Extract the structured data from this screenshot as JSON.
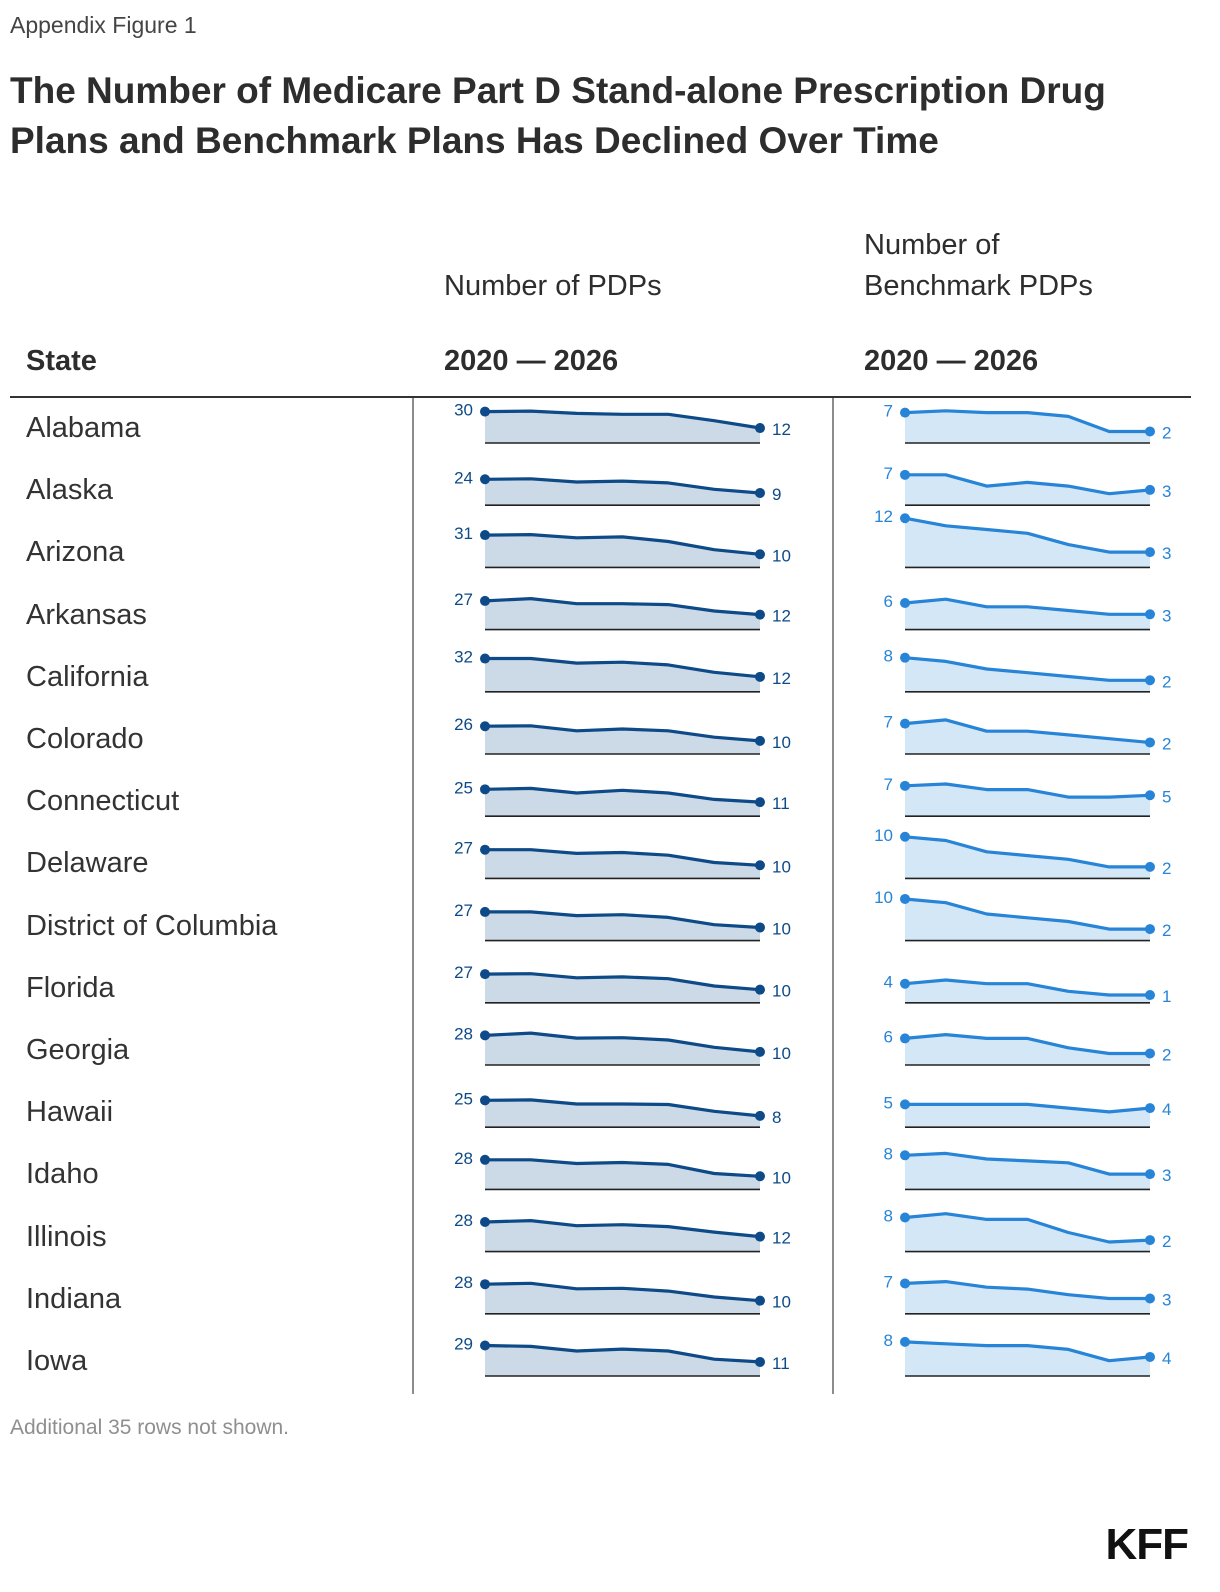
{
  "header": {
    "eyebrow": "Appendix Figure 1",
    "title": "The Number of Medicare Part D Stand-alone Prescription Drug Plans and Benchmark Plans Has Declined Over Time"
  },
  "columns": {
    "state": "State",
    "pdps": "Number of PDPs",
    "benchmark_line1": "Number of",
    "benchmark_line2": "Benchmark PDPs",
    "range_pdps": "2020 — 2026",
    "range_benchmark": "2020 — 2026"
  },
  "footer": {
    "note": "Additional 35 rows not shown.",
    "logo": "KFF"
  },
  "colors": {
    "pdps_line": "#0d4a87",
    "pdps_fill": "#ccd9e7",
    "benchmark_line": "#2784d6",
    "benchmark_fill": "#d4e7f7",
    "baseline": "#222222"
  },
  "chart_data": {
    "type": "area",
    "x": [
      2020,
      2021,
      2022,
      2023,
      2024,
      2025,
      2026
    ],
    "series_names": [
      "Number of PDPs",
      "Number of Benchmark PDPs"
    ],
    "rows": [
      {
        "state": "Alabama",
        "pdps": [
          30,
          30.5,
          28,
          27,
          27,
          20,
          12
        ],
        "benchmark": [
          7,
          7.5,
          7,
          7,
          6,
          2,
          2
        ]
      },
      {
        "state": "Alaska",
        "pdps": [
          24,
          24.5,
          21,
          22,
          20,
          13,
          9
        ],
        "benchmark": [
          7,
          7,
          4,
          5,
          4,
          2,
          3
        ]
      },
      {
        "state": "Arizona",
        "pdps": [
          31,
          31.5,
          28,
          29,
          24,
          15,
          10
        ],
        "benchmark": [
          12,
          10,
          9,
          8,
          5,
          3,
          3
        ]
      },
      {
        "state": "Arkansas",
        "pdps": [
          27,
          29.5,
          24,
          24,
          23,
          16,
          12
        ],
        "benchmark": [
          6,
          7,
          5,
          5,
          4,
          3,
          3
        ]
      },
      {
        "state": "California",
        "pdps": [
          32,
          32,
          27,
          28,
          25,
          17,
          12
        ],
        "benchmark": [
          8,
          7,
          5,
          4,
          3,
          2,
          2
        ]
      },
      {
        "state": "Colorado",
        "pdps": [
          26,
          26.5,
          21,
          23,
          21,
          14,
          10
        ],
        "benchmark": [
          7,
          8,
          5,
          5,
          4,
          3,
          2
        ]
      },
      {
        "state": "Connecticut",
        "pdps": [
          25,
          26,
          21,
          24,
          21,
          14,
          11
        ],
        "benchmark": [
          7,
          7.5,
          6,
          6,
          4,
          4,
          4.5
        ]
      },
      {
        "state": "Delaware",
        "pdps": [
          27,
          27,
          23,
          24,
          21,
          13,
          10
        ],
        "benchmark": [
          10,
          9,
          6,
          5,
          4,
          2,
          2
        ]
      },
      {
        "state": "District of Columbia",
        "pdps": [
          27,
          27,
          23,
          24,
          21,
          13,
          10
        ],
        "benchmark": [
          10,
          9,
          6,
          5,
          4,
          2,
          2
        ]
      },
      {
        "state": "Florida",
        "pdps": [
          27,
          27.5,
          23,
          24,
          22,
          14,
          10
        ],
        "benchmark": [
          4,
          5,
          4,
          4,
          2,
          1,
          1
        ]
      },
      {
        "state": "Georgia",
        "pdps": [
          28,
          30.5,
          25,
          25.5,
          23,
          15,
          10
        ],
        "benchmark": [
          6,
          7,
          6,
          6,
          3.5,
          2,
          2
        ]
      },
      {
        "state": "Hawaii",
        "pdps": [
          25,
          25.5,
          21,
          21,
          20.5,
          13,
          8
        ],
        "benchmark": [
          5,
          5,
          5,
          5,
          4,
          3,
          4
        ]
      },
      {
        "state": "Idaho",
        "pdps": [
          28,
          28,
          24,
          25,
          23,
          13,
          10
        ],
        "benchmark": [
          8,
          8.5,
          7,
          6.5,
          6,
          3,
          3
        ]
      },
      {
        "state": "Illinois",
        "pdps": [
          28,
          29.5,
          24,
          25,
          23,
          17,
          12
        ],
        "benchmark": [
          8,
          9,
          7.5,
          7.5,
          4,
          1.5,
          2
        ]
      },
      {
        "state": "Indiana",
        "pdps": [
          28,
          29,
          23,
          23.5,
          20.5,
          14,
          10
        ],
        "benchmark": [
          7,
          7.5,
          6,
          5.5,
          4,
          3,
          3
        ]
      },
      {
        "state": "Iowa",
        "pdps": [
          29,
          28,
          23,
          25,
          23,
          14,
          11
        ],
        "benchmark": [
          8,
          7.5,
          7,
          7,
          6,
          3,
          4
        ]
      }
    ]
  }
}
